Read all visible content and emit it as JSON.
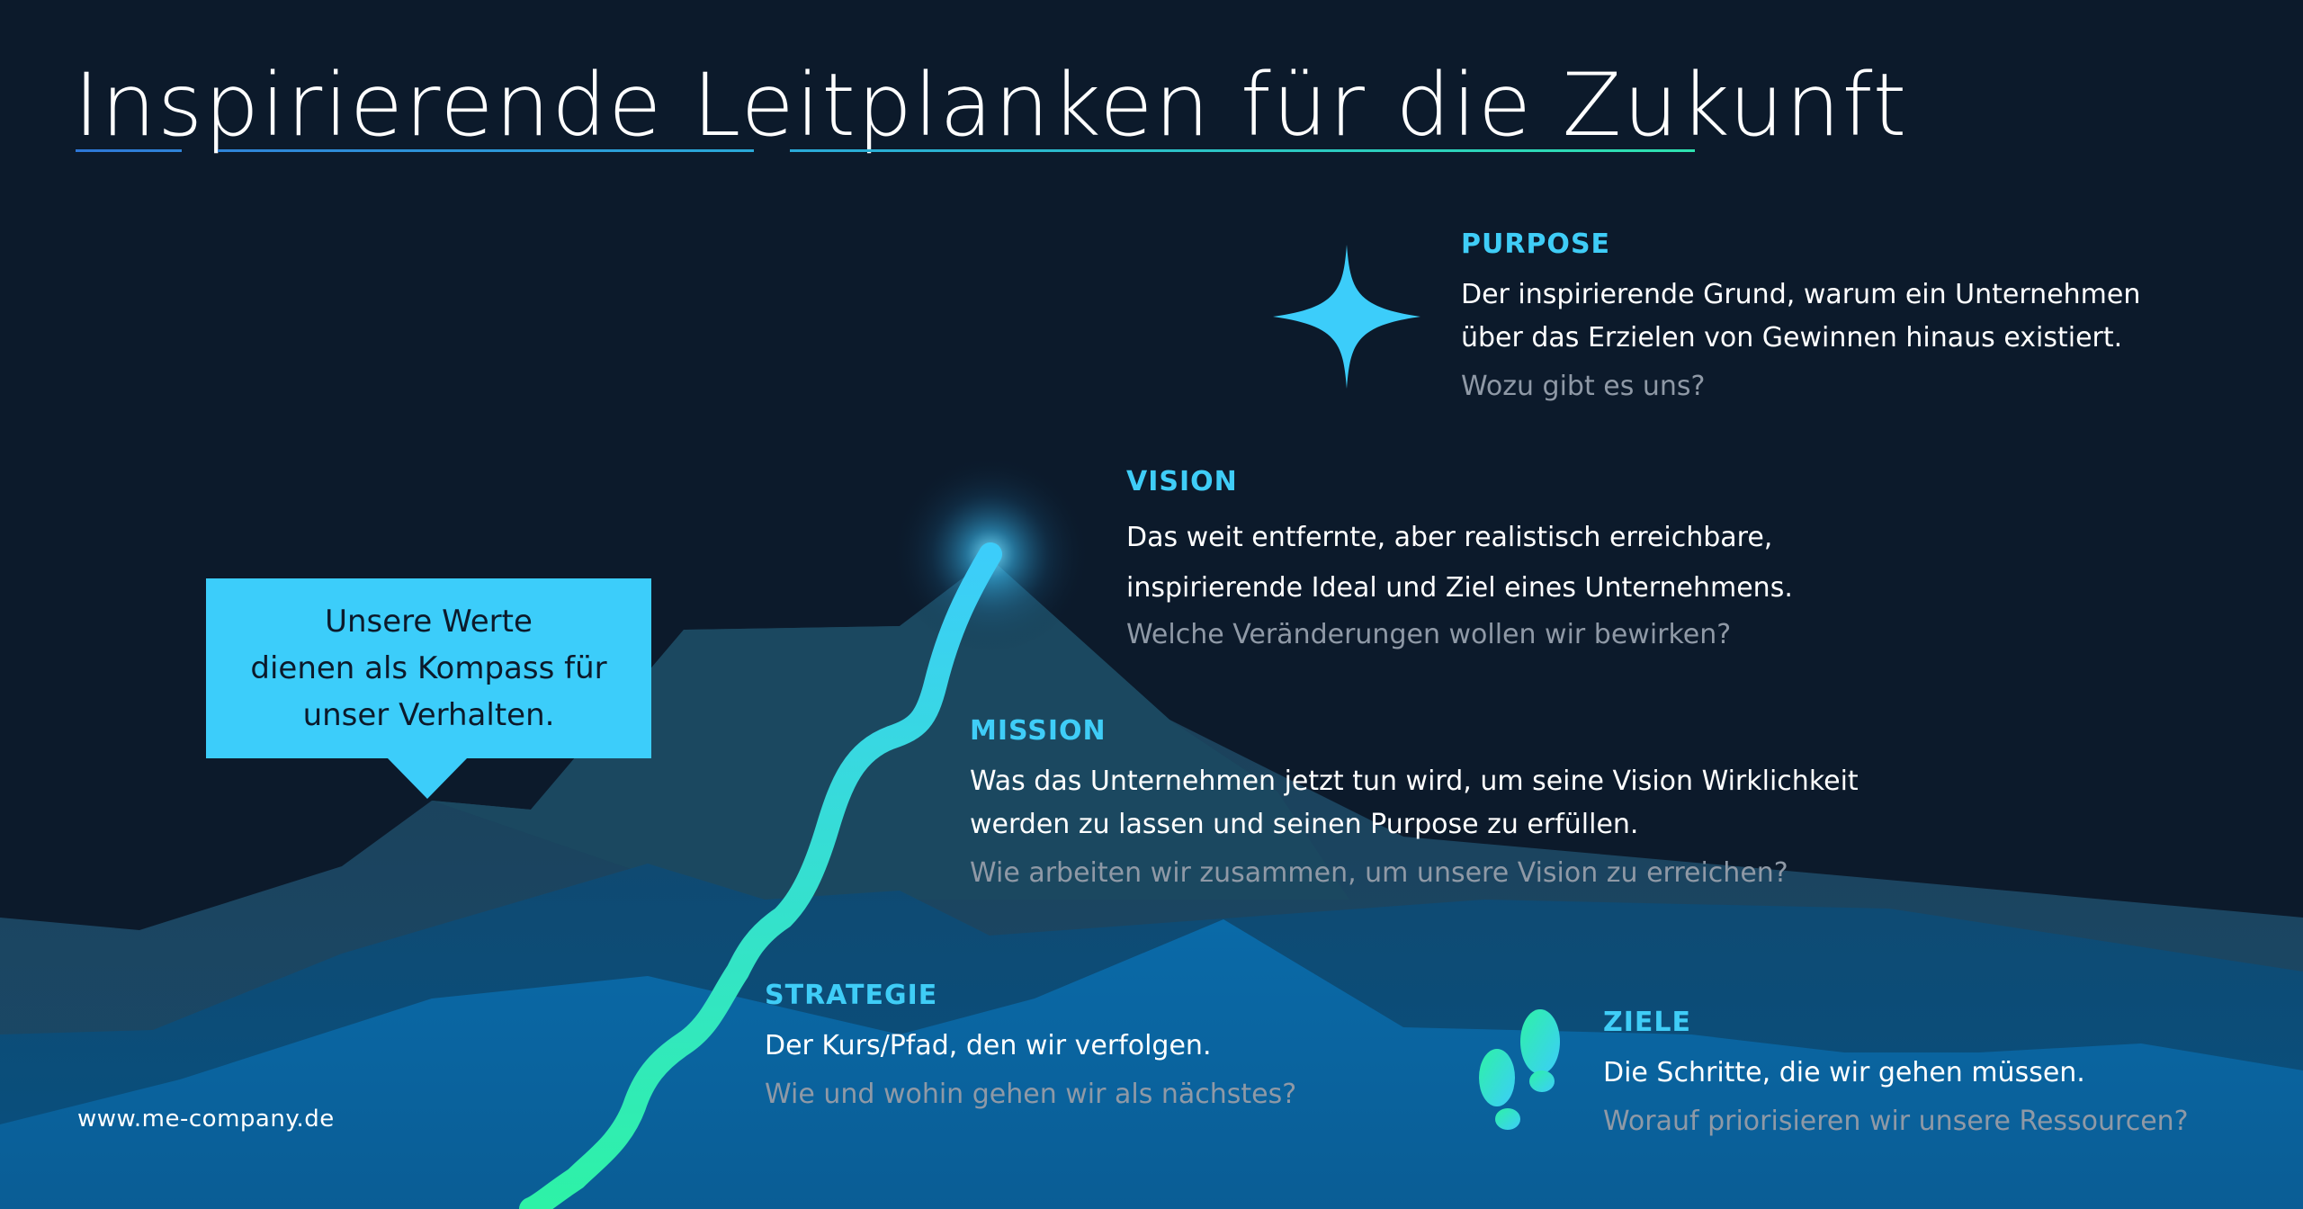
{
  "title": "Inspirierende Leitplanken für die Zukunft",
  "callout": {
    "line1": "Unsere Werte",
    "line2": "dienen als Kompass für",
    "line3": "unser Verhalten."
  },
  "sections": {
    "purpose": {
      "heading": "PURPOSE",
      "line1": "Der inspirierende Grund, warum ein Unternehmen",
      "line2": "über das Erzielen von Gewinnen hinaus existiert.",
      "question": "Wozu gibt es uns?"
    },
    "vision": {
      "heading": "VISION",
      "line1": "Das weit entfernte, aber realistisch erreichbare,",
      "line2": "inspirierende Ideal und Ziel eines Unternehmens.",
      "question": "Welche Veränderungen wollen wir bewirken?"
    },
    "mission": {
      "heading": "MISSION",
      "line1": "Was das Unternehmen jetzt tun wird, um seine Vision Wirklichkeit",
      "line2": "werden zu lassen und seinen Purpose zu erfüllen.",
      "question": "Wie arbeiten wir zusammen, um unsere Vision zu erreichen?"
    },
    "strategie": {
      "heading": "STRATEGIE",
      "line1": "Der Kurs/Pfad, den wir verfolgen.",
      "question": "Wie und wohin gehen wir als nächstes?"
    },
    "ziele": {
      "heading": "ZIELE",
      "line1": "Die Schritte, die wir gehen müssen.",
      "question": "Worauf priorisieren wir unsere Ressourcen?"
    }
  },
  "footer": "www.me-company.de",
  "icons": {
    "star": "four-point-star-icon",
    "glow": "summit-glow-icon",
    "footprints": "footprints-icon"
  },
  "colors": {
    "background": "#0c1a2b",
    "accent": "#3fcdf7",
    "question": "#8f99a6",
    "path_top": "#3ccdfa",
    "path_bottom": "#2ef0a8"
  }
}
